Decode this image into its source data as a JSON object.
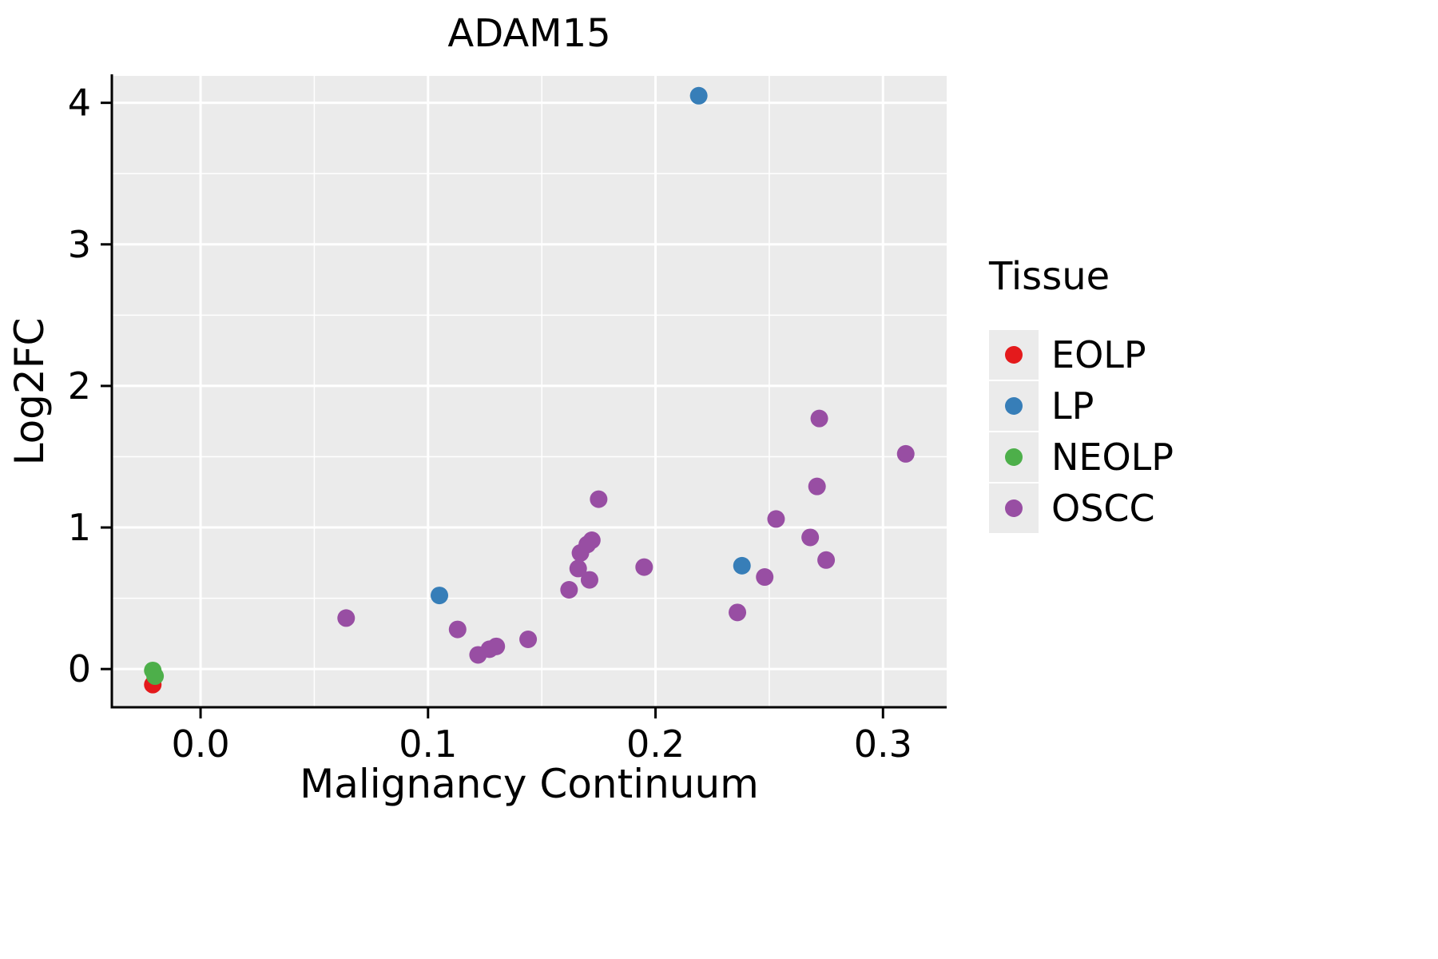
{
  "chart_data": {
    "type": "scatter",
    "title": "ADAM15",
    "xlabel": "Malignancy Continuum",
    "ylabel": "Log2FC",
    "legend_title": "Tissue",
    "legend_position": "right",
    "grid": true,
    "panel_background": "#EBEBEB",
    "grid_color": "#FFFFFF",
    "axis_color": "#000000",
    "xlim": [
      -0.039,
      0.328
    ],
    "ylim": [
      -0.27,
      4.19
    ],
    "x_ticks": [
      0.0,
      0.1,
      0.2,
      0.3
    ],
    "y_ticks": [
      0,
      1,
      2,
      3,
      4
    ],
    "x_minor_ticks": [
      0.05,
      0.15,
      0.25
    ],
    "y_minor_ticks": [
      0.5,
      1.5,
      2.5,
      3.5
    ],
    "point_radius": 11,
    "series": [
      {
        "name": "EOLP",
        "color": "#E41A1C",
        "points": [
          [
            -0.021,
            -0.11
          ]
        ]
      },
      {
        "name": "LP",
        "color": "#377EB8",
        "points": [
          [
            0.105,
            0.52
          ],
          [
            0.219,
            4.05
          ],
          [
            0.238,
            0.73
          ]
        ]
      },
      {
        "name": "NEOLP",
        "color": "#4DAF4A",
        "points": [
          [
            -0.021,
            -0.01
          ],
          [
            -0.02,
            -0.05
          ]
        ]
      },
      {
        "name": "OSCC",
        "color": "#984EA3",
        "points": [
          [
            0.064,
            0.36
          ],
          [
            0.113,
            0.28
          ],
          [
            0.122,
            0.1
          ],
          [
            0.127,
            0.14
          ],
          [
            0.13,
            0.16
          ],
          [
            0.144,
            0.21
          ],
          [
            0.162,
            0.56
          ],
          [
            0.166,
            0.71
          ],
          [
            0.167,
            0.82
          ],
          [
            0.17,
            0.88
          ],
          [
            0.172,
            0.91
          ],
          [
            0.171,
            0.63
          ],
          [
            0.175,
            1.2
          ],
          [
            0.195,
            0.72
          ],
          [
            0.236,
            0.4
          ],
          [
            0.248,
            0.65
          ],
          [
            0.253,
            1.06
          ],
          [
            0.268,
            0.93
          ],
          [
            0.271,
            1.29
          ],
          [
            0.272,
            1.77
          ],
          [
            0.275,
            0.77
          ],
          [
            0.31,
            1.52
          ]
        ]
      }
    ]
  }
}
